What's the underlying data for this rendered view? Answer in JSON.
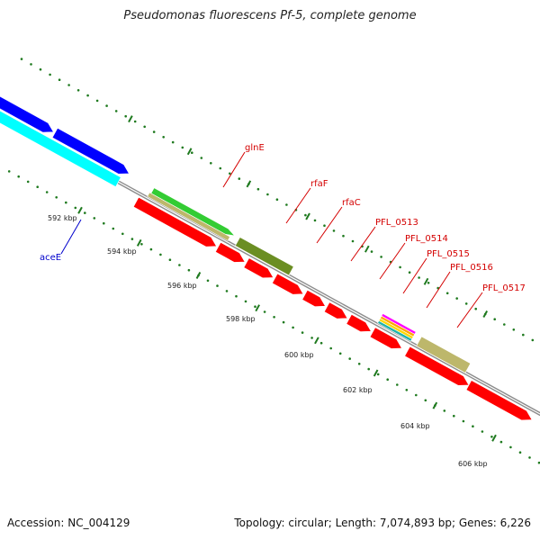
{
  "title": "Pseudomonas fluorescens Pf-5, complete genome",
  "accession": "Accession: NC_004129",
  "topology": "Topology: circular; Length: 7,074,893 bp; Genes: 6,226",
  "colors": {
    "backbone": "#8c8c8c",
    "ticks": "#1f7a1f",
    "gene_label": "#d40000",
    "acee_label": "#0000cc",
    "blue": "#0000ff",
    "cyan": "#00ffff",
    "red": "#ff0000",
    "green": "#33cc33",
    "tan": "#bdb76b",
    "olive": "#6b8e23",
    "magenta": "#ff00ff",
    "orange": "#ffa500",
    "yellow": "#ffd700",
    "teal": "#20b2aa"
  },
  "kbp_labels": [
    "592 kbp",
    "594 kbp",
    "596 kbp",
    "598 kbp",
    "600 kbp",
    "602 kbp",
    "604 kbp",
    "606 kbp"
  ],
  "gene_labels": [
    "glnE",
    "rfaF",
    "rfaC",
    "PFL_0513",
    "PFL_0514",
    "PFL_0515",
    "PFL_0516",
    "PFL_0517"
  ],
  "acee_label": "aceE"
}
